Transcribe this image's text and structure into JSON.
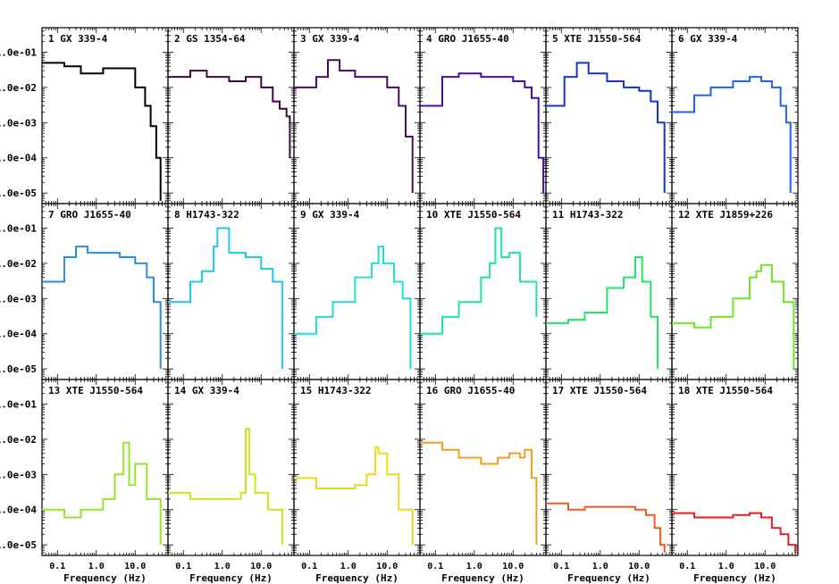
{
  "chart_data": {
    "type": "line",
    "layout": "grid 3 rows x 6 columns of power density spectra",
    "scale": "log-log",
    "xlabel": "Frequency (Hz)",
    "xlim": [
      0.04,
      70
    ],
    "ylim": [
      5e-06,
      0.5
    ],
    "x_ticks": [
      0.1,
      1.0,
      10.0
    ],
    "x_tick_labels": [
      "0.1",
      "1.0",
      "10.0"
    ],
    "y_ticks": [
      0.1,
      0.01,
      0.001,
      0.0001,
      1e-05
    ],
    "y_tick_labels": [
      "1.0e-01",
      "1.0e-02",
      "1.0e-03",
      "1.0e-04",
      "1.0e-05"
    ],
    "panels": [
      {
        "num": "1",
        "source": "GX 339-4",
        "color": "#000000",
        "x": [
          0.04,
          0.15,
          0.4,
          1.5,
          4,
          10,
          18,
          25,
          35,
          45
        ],
        "y": [
          0.05,
          0.04,
          0.025,
          0.035,
          0.035,
          0.01,
          0.003,
          0.0008,
          0.0001,
          6e-06
        ]
      },
      {
        "num": "2",
        "source": "GS 1354-64",
        "color": "#3b0a3e",
        "x": [
          0.04,
          0.15,
          0.4,
          1.5,
          4,
          10,
          20,
          30,
          45,
          55
        ],
        "y": [
          0.02,
          0.03,
          0.02,
          0.015,
          0.02,
          0.01,
          0.004,
          0.0025,
          0.0015,
          0.0001
        ]
      },
      {
        "num": "3",
        "source": "GX 339-4",
        "color": "#4b0a5c",
        "x": [
          0.04,
          0.15,
          0.3,
          0.6,
          1.5,
          4,
          10,
          20,
          30,
          45
        ],
        "y": [
          0.01,
          0.02,
          0.06,
          0.03,
          0.02,
          0.02,
          0.01,
          0.003,
          0.0004,
          1e-05
        ]
      },
      {
        "num": "4",
        "source": "GRO J1655-40",
        "color": "#4a0aa8",
        "x": [
          0.04,
          0.15,
          0.4,
          1.5,
          4,
          10,
          20,
          30,
          45,
          60
        ],
        "y": [
          0.003,
          0.02,
          0.025,
          0.02,
          0.02,
          0.015,
          0.01,
          0.005,
          0.0001,
          1e-05
        ]
      },
      {
        "num": "5",
        "source": "XTE J1550-564",
        "color": "#1432d6",
        "x": [
          0.04,
          0.12,
          0.25,
          0.5,
          1.5,
          4,
          10,
          20,
          30,
          45
        ],
        "y": [
          0.003,
          0.02,
          0.05,
          0.025,
          0.015,
          0.01,
          0.008,
          0.004,
          0.001,
          1e-05
        ]
      },
      {
        "num": "6",
        "source": "GX 339-4",
        "color": "#1e64e6",
        "x": [
          0.04,
          0.15,
          0.4,
          1.5,
          4,
          8,
          15,
          25,
          35,
          45
        ],
        "y": [
          0.002,
          0.006,
          0.01,
          0.015,
          0.02,
          0.015,
          0.01,
          0.003,
          0.001,
          1e-05
        ]
      },
      {
        "num": "7",
        "source": "GRO J1655-40",
        "color": "#2a8ee0",
        "x": [
          0.04,
          0.15,
          0.3,
          0.6,
          1.5,
          4,
          10,
          20,
          30,
          45
        ],
        "y": [
          0.003,
          0.015,
          0.03,
          0.02,
          0.02,
          0.015,
          0.01,
          0.004,
          0.0008,
          1e-05
        ]
      },
      {
        "num": "8",
        "source": "H1743-322",
        "color": "#21c8e8",
        "x": [
          0.04,
          0.15,
          0.3,
          0.6,
          0.75,
          1.5,
          4,
          10,
          20,
          35
        ],
        "y": [
          0.0008,
          0.003,
          0.006,
          0.03,
          0.1,
          0.02,
          0.015,
          0.007,
          0.003,
          1e-05
        ]
      },
      {
        "num": "9",
        "source": "GX 339-4",
        "color": "#1ee0d2",
        "x": [
          0.04,
          0.15,
          0.4,
          1.5,
          4,
          6,
          8,
          15,
          25,
          40
        ],
        "y": [
          0.0001,
          0.0003,
          0.0008,
          0.004,
          0.01,
          0.03,
          0.01,
          0.003,
          0.001,
          1e-05
        ]
      },
      {
        "num": "10",
        "source": "XTE J1550-564",
        "color": "#1ee6a0",
        "x": [
          0.04,
          0.15,
          0.4,
          1.5,
          2.5,
          3.5,
          5,
          8,
          15,
          40
        ],
        "y": [
          0.0001,
          0.0003,
          0.0008,
          0.004,
          0.01,
          0.1,
          0.015,
          0.02,
          0.003,
          0.0003
        ]
      },
      {
        "num": "11",
        "source": "H1743-322",
        "color": "#1ee664",
        "x": [
          0.04,
          0.15,
          0.4,
          1.5,
          4,
          6,
          8,
          12,
          20,
          30
        ],
        "y": [
          0.0002,
          0.00025,
          0.0004,
          0.002,
          0.004,
          0.004,
          0.015,
          0.003,
          0.0003,
          1e-05
        ]
      },
      {
        "num": "12",
        "source": "XTE J1859+226",
        "color": "#6ee628",
        "x": [
          0.04,
          0.15,
          0.4,
          1.5,
          4,
          6,
          8,
          15,
          30,
          55
        ],
        "y": [
          0.0002,
          0.00015,
          0.0003,
          0.001,
          0.004,
          0.006,
          0.009,
          0.003,
          0.0008,
          1e-05
        ]
      },
      {
        "num": "13",
        "source": "XTE J1550-564",
        "color": "#96e628",
        "x": [
          0.04,
          0.15,
          0.4,
          1.5,
          3,
          5,
          7,
          10,
          20,
          45
        ],
        "y": [
          0.0001,
          6e-05,
          0.0001,
          0.0002,
          0.001,
          0.008,
          0.0005,
          0.002,
          0.0002,
          1e-05
        ]
      },
      {
        "num": "14",
        "source": "GX 339-4",
        "color": "#c8e61e",
        "x": [
          0.04,
          0.15,
          0.4,
          1.5,
          3,
          4,
          5,
          7,
          15,
          35
        ],
        "y": [
          0.0003,
          0.0002,
          0.0002,
          0.0002,
          0.0003,
          0.02,
          0.001,
          0.0003,
          0.0001,
          1e-05
        ]
      },
      {
        "num": "15",
        "source": "H1743-322",
        "color": "#ecd81e",
        "x": [
          0.04,
          0.15,
          0.4,
          1.5,
          3,
          5,
          6,
          10,
          20,
          45
        ],
        "y": [
          0.0008,
          0.0004,
          0.0004,
          0.0005,
          0.001,
          0.006,
          0.004,
          0.001,
          0.0001,
          1e-05
        ]
      },
      {
        "num": "16",
        "source": "GRO J1655-40",
        "color": "#f0a01e",
        "x": [
          0.04,
          0.15,
          0.4,
          1.5,
          4,
          8,
          15,
          20,
          30,
          40
        ],
        "y": [
          0.008,
          0.005,
          0.003,
          0.002,
          0.003,
          0.004,
          0.003,
          0.005,
          0.0008,
          1e-05
        ]
      },
      {
        "num": "17",
        "source": "XTE J1550-564",
        "color": "#f05a1e",
        "x": [
          0.04,
          0.15,
          0.4,
          1.5,
          4,
          8,
          15,
          25,
          35,
          45
        ],
        "y": [
          0.00015,
          0.0001,
          0.00012,
          0.00012,
          0.00012,
          0.0001,
          7e-05,
          3e-05,
          1e-05,
          6e-06
        ]
      },
      {
        "num": "18",
        "source": "XTE J1550-564",
        "color": "#e61e1e",
        "x": [
          0.04,
          0.15,
          0.4,
          1.5,
          4,
          8,
          15,
          25,
          40,
          60
        ],
        "y": [
          8e-05,
          6e-05,
          6e-05,
          7e-05,
          8e-05,
          6e-05,
          3e-05,
          2e-05,
          1e-05,
          6e-06
        ]
      }
    ]
  }
}
